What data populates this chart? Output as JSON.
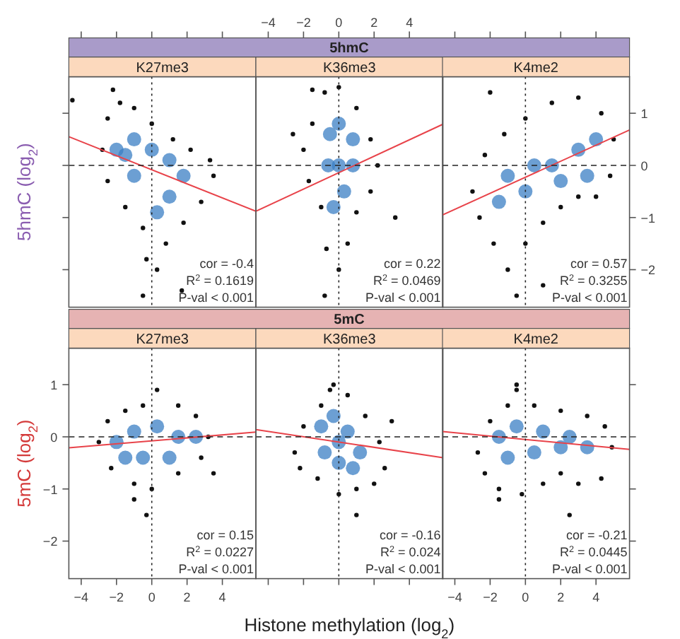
{
  "chart_data": [
    {
      "type": "scatter",
      "title": "K27me3",
      "ylabel": "5hmC (log$_{2}$)",
      "xlim": [
        -4.7,
        5.9
      ],
      "xticks": [
        -4,
        -2,
        0,
        2,
        4
      ],
      "ylim": [
        -2.72,
        1.7
      ],
      "yticks": [
        -2,
        -1,
        0,
        1
      ],
      "tick_labels": false,
      "marker": "circle",
      "series": [
        {
          "color": "#111111",
          "x": [
            -2.8,
            -2.5,
            -1.8,
            -1,
            0,
            1.2,
            2.2,
            3.3,
            3.5,
            2.8,
            1.8,
            0.8,
            0.3,
            -0.3,
            -0.5,
            -1.5,
            -2.5,
            -4.5,
            -2.2,
            -0.5,
            1.7
          ],
          "values": [
            0.3,
            0.9,
            1.2,
            1.1,
            0.8,
            0.5,
            0.3,
            0.1,
            -0.2,
            -0.7,
            -1.1,
            -1.5,
            -2,
            -1.8,
            -1.2,
            -0.8,
            -0.3,
            1.25,
            1.45,
            -2.5,
            -2.4
          ]
        },
        {
          "color": "#3b7fc4",
          "x": [
            -2,
            -1,
            0,
            1,
            1.8,
            1,
            0.3,
            -1,
            -1.5
          ],
          "values": [
            0.3,
            0.5,
            0.3,
            0.1,
            -0.2,
            -0.6,
            -0.9,
            -0.2,
            0.2
          ]
        },
        {
          "type": "line",
          "marker": "none",
          "color": "#e8434a",
          "x": [
            -4.7,
            5.9
          ],
          "values": [
            0.55,
            -0.88
          ]
        }
      ],
      "ref_lines": [
        {
          "axis": "x",
          "value": 0,
          "line_style": "dotted"
        },
        {
          "axis": "y",
          "value": 0,
          "line_style": "dashed"
        }
      ],
      "annotations": [
        "cor = -0.4",
        "R$^{2}$ = 0.1619",
        "P-val < 0.001"
      ]
    },
    {
      "type": "scatter",
      "title": "K36me3",
      "subtitle": "5hmC",
      "xlim": [
        -4.7,
        5.9
      ],
      "xticks": [
        -4,
        -2,
        0,
        2,
        4
      ],
      "ylim": [
        -2.72,
        1.7
      ],
      "tick_labels": "x",
      "marker": "circle",
      "series": [
        {
          "color": "#111111",
          "x": [
            -1.5,
            -0.8,
            0,
            1,
            1.8,
            2.2,
            1.8,
            1,
            0.5,
            0,
            -0.7,
            -1,
            -1.7,
            -2,
            -1.5,
            -0.8,
            3.2,
            -2.6
          ],
          "values": [
            0.8,
            1.4,
            1.5,
            1.1,
            0.5,
            0,
            -0.5,
            -0.9,
            -1.5,
            -2,
            -1.6,
            -0.8,
            -0.3,
            0.3,
            1.45,
            -2.5,
            -1,
            0.6
          ]
        },
        {
          "color": "#3b7fc4",
          "x": [
            0,
            0.8,
            0.8,
            0.3,
            -0.3,
            -0.6,
            -0.5,
            0
          ],
          "values": [
            0.8,
            0.5,
            0,
            -0.5,
            -0.8,
            0,
            0.6,
            0
          ]
        },
        {
          "type": "line",
          "marker": "none",
          "color": "#e8434a",
          "x": [
            -4.7,
            5.9
          ],
          "values": [
            -0.88,
            0.79
          ]
        }
      ],
      "ref_lines": [
        {
          "axis": "x",
          "value": 0,
          "line_style": "dotted"
        },
        {
          "axis": "y",
          "value": 0,
          "line_style": "dashed"
        }
      ],
      "annotations": [
        "cor = 0.22",
        "R$^{2}$ = 0.0469",
        "P-val < 0.001"
      ]
    },
    {
      "type": "scatter",
      "title": "K4me2",
      "xlim": [
        -4.7,
        5.9
      ],
      "xticks": [
        -4,
        -2,
        0,
        2,
        4
      ],
      "ylim": [
        -2.72,
        1.7
      ],
      "yticks": [
        -2,
        -1,
        0,
        1
      ],
      "tick_labels": "y",
      "marker": "circle",
      "series": [
        {
          "color": "#111111",
          "x": [
            -3,
            -2.3,
            -1.2,
            0,
            1.5,
            3,
            4.3,
            5,
            4.8,
            4,
            3,
            2,
            1,
            0,
            -1,
            -1.8,
            -2.6,
            -2,
            -0.5,
            1
          ],
          "values": [
            -0.5,
            0.2,
            0.6,
            0.9,
            1.2,
            1.3,
            1,
            0.5,
            -0.2,
            -0.6,
            -0.6,
            -0.8,
            -1.1,
            -1.5,
            -2,
            -1.5,
            -1,
            1.4,
            -2.5,
            -2.3
          ]
        },
        {
          "color": "#3b7fc4",
          "x": [
            -1.5,
            0,
            1.5,
            3,
            4,
            3.5,
            2,
            0.5,
            -1
          ],
          "values": [
            -0.7,
            -0.5,
            0,
            0.3,
            0.5,
            -0.2,
            -0.3,
            0,
            -0.2
          ]
        },
        {
          "type": "line",
          "marker": "none",
          "color": "#e8434a",
          "x": [
            -4.7,
            5.9
          ],
          "values": [
            -0.95,
            0.68
          ]
        }
      ],
      "ref_lines": [
        {
          "axis": "x",
          "value": 0,
          "line_style": "dotted"
        },
        {
          "axis": "y",
          "value": 0,
          "line_style": "dashed"
        }
      ],
      "annotations": [
        "cor = 0.57",
        "R$^{2}$ = 0.3255",
        "P-val < 0.001"
      ]
    },
    {
      "type": "scatter",
      "title": "K27me3",
      "ylabel": "5mC (log$_{2}$)",
      "xlim": [
        -4.7,
        5.9
      ],
      "xticks": [
        -4,
        -2,
        0,
        2,
        4
      ],
      "ylim": [
        -2.72,
        1.7
      ],
      "yticks": [
        -2,
        -1,
        0,
        1
      ],
      "marker": "circle",
      "series": [
        {
          "color": "#111111",
          "x": [
            -3,
            -2.5,
            -1.5,
            -0.5,
            0.3,
            1.5,
            2.5,
            3.2,
            2.8,
            1.5,
            0,
            -1,
            -2.3,
            -0.3,
            -1,
            3.5
          ],
          "values": [
            -0.1,
            0.3,
            0.5,
            0.6,
            0.9,
            0.6,
            0.4,
            0,
            -0.4,
            -0.7,
            -1,
            -0.9,
            -0.6,
            -1.5,
            -1.2,
            -0.7
          ]
        },
        {
          "color": "#3b7fc4",
          "x": [
            -2,
            -1,
            0.3,
            1.5,
            2.5,
            1,
            -0.5,
            -1.5
          ],
          "values": [
            -0.1,
            0.1,
            0.2,
            0,
            0,
            -0.4,
            -0.4,
            -0.4
          ]
        },
        {
          "type": "line",
          "marker": "none",
          "color": "#e8434a",
          "x": [
            -4.7,
            5.9
          ],
          "values": [
            -0.21,
            0.09
          ]
        }
      ],
      "ref_lines": [
        {
          "axis": "x",
          "value": 0,
          "line_style": "dotted"
        },
        {
          "axis": "y",
          "value": 0,
          "line_style": "dashed"
        }
      ],
      "annotations": [
        "cor = 0.15",
        "R$^{2}$ = 0.0227",
        "P-val < 0.001"
      ]
    },
    {
      "type": "scatter",
      "title": "K36me3",
      "subtitle": "5mC",
      "xlabel": "Histone methylation (log$_{2}$)",
      "xlim": [
        -4.7,
        5.9
      ],
      "xticks": [
        -4,
        -2,
        0,
        2,
        4
      ],
      "ylim": [
        -2.72,
        1.7
      ],
      "tick_labels": false,
      "marker": "circle",
      "series": [
        {
          "color": "#111111",
          "x": [
            -2.5,
            -2,
            -1,
            -0.5,
            0.5,
            1.5,
            2.3,
            2.6,
            2,
            1,
            0,
            -1.2,
            -2.2,
            1,
            3,
            -0.3
          ],
          "values": [
            -0.3,
            0.2,
            0.6,
            0.9,
            0.8,
            0.4,
            -0.1,
            -0.6,
            -0.9,
            -1,
            -1.1,
            -0.8,
            -0.6,
            -1.5,
            0.3,
            1
          ]
        },
        {
          "color": "#3b7fc4",
          "x": [
            -1,
            -0.3,
            0.5,
            1.2,
            0.8,
            0,
            -0.8,
            0
          ],
          "values": [
            0.2,
            0.4,
            0.1,
            -0.3,
            -0.6,
            -0.5,
            -0.3,
            -0.1
          ]
        },
        {
          "type": "line",
          "marker": "none",
          "color": "#e8434a",
          "x": [
            -4.7,
            5.9
          ],
          "values": [
            0.14,
            -0.4
          ]
        }
      ],
      "ref_lines": [
        {
          "axis": "x",
          "value": 0,
          "line_style": "dotted"
        },
        {
          "axis": "y",
          "value": 0,
          "line_style": "dashed"
        }
      ],
      "annotations": [
        "cor = -0.16",
        "R$^{2}$ = 0.024",
        "P-val < 0.001"
      ]
    },
    {
      "type": "scatter",
      "title": "K4me2",
      "xlim": [
        -4.7,
        5.9
      ],
      "xticks": [
        -4,
        -2,
        0,
        2,
        4
      ],
      "ylim": [
        -2.72,
        1.7
      ],
      "yticks": [
        -2,
        -1,
        0,
        1
      ],
      "tick_labels": "x",
      "marker": "circle",
      "series": [
        {
          "color": "#111111",
          "x": [
            -2.7,
            -2,
            -1,
            -0.5,
            0.5,
            2,
            3.5,
            4.5,
            4.9,
            4.3,
            3,
            2,
            1,
            -0.2,
            -1.5,
            -2.3,
            2.5,
            -0.5,
            -1.5
          ],
          "values": [
            -0.3,
            0.3,
            0.6,
            0.9,
            0.6,
            0.5,
            0.4,
            0.2,
            -0.2,
            -0.8,
            -0.9,
            -0.7,
            -0.9,
            -1.1,
            -1,
            -0.7,
            -1.5,
            1,
            -1.2
          ]
        },
        {
          "color": "#3b7fc4",
          "x": [
            -1.5,
            -0.5,
            1,
            2.5,
            3.5,
            2,
            0.5,
            -1
          ],
          "values": [
            0,
            0.2,
            0.1,
            0,
            -0.2,
            -0.2,
            -0.3,
            -0.4
          ]
        },
        {
          "type": "line",
          "marker": "none",
          "color": "#e8434a",
          "x": [
            -4.7,
            5.9
          ],
          "values": [
            0.1,
            -0.24
          ]
        }
      ],
      "ref_lines": [
        {
          "axis": "x",
          "value": 0,
          "line_style": "dotted"
        },
        {
          "axis": "y",
          "value": 0,
          "line_style": "dashed"
        }
      ],
      "annotations": [
        "cor = -0.21",
        "R$^{2}$ = 0.0445",
        "P-val < 0.001"
      ]
    }
  ]
}
